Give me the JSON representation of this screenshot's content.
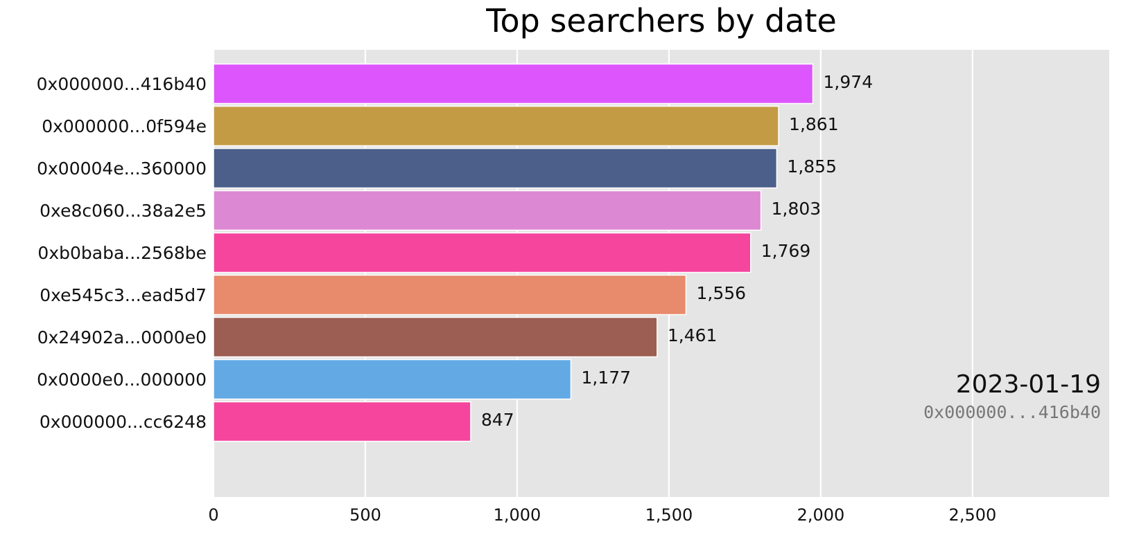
{
  "chart_data": {
    "type": "bar",
    "orientation": "horizontal",
    "title": "Top searchers by date",
    "xlabel": "",
    "ylabel": "",
    "xlim": [
      0,
      2950
    ],
    "x_ticks": [
      0,
      500,
      1000,
      1500,
      2000,
      2500
    ],
    "x_tick_labels": [
      "0",
      "500",
      "1,000",
      "1,500",
      "2,000",
      "2,500"
    ],
    "grid": true,
    "categories": [
      "0x000000...416b40",
      "0x000000...0f594e",
      "0x00004e...360000",
      "0xe8c060...38a2e5",
      "0xb0baba...2568be",
      "0xe545c3...ead5d7",
      "0x24902a...0000e0",
      "0x0000e0...000000",
      "0x000000...cc6248"
    ],
    "values": [
      1974,
      1861,
      1855,
      1803,
      1769,
      1556,
      1461,
      1177,
      847
    ],
    "value_labels": [
      "1,974",
      "1,861",
      "1,855",
      "1,803",
      "1,769",
      "1,556",
      "1,461",
      "1,177",
      "847"
    ],
    "colors": [
      "#dd55fc",
      "#c49b45",
      "#4b5f8a",
      "#dd88d3",
      "#f5459d",
      "#e88a6c",
      "#9c5d52",
      "#63aae5",
      "#f5459d"
    ],
    "date_label": "2023-01-19",
    "leader_label": "0x000000...416b40",
    "background_color": "#e5e5e5",
    "grid_color": "#ffffff"
  }
}
